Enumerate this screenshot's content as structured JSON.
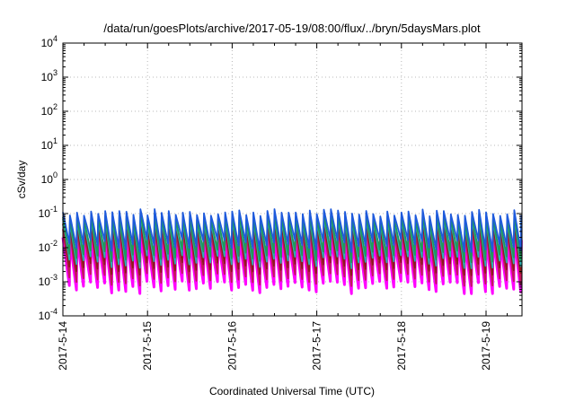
{
  "chart_data": {
    "type": "line",
    "title": "/data/run/goesPlots/archive/2017-05-19/08:00/flux/../bryn/5daysMars.plot",
    "xlabel": "Coordinated Universal Time (UTC)",
    "ylabel": "cSv/day",
    "yscale": "log",
    "ylim": [
      0.0001,
      10000
    ],
    "xlim": [
      "2017-05-14 00:00",
      "2017-05-19 10:00"
    ],
    "grid": true,
    "y_ticks": [
      {
        "base": "10",
        "exp": "-4"
      },
      {
        "base": "10",
        "exp": "-3"
      },
      {
        "base": "10",
        "exp": "-2"
      },
      {
        "base": "10",
        "exp": "-1"
      },
      {
        "base": "10",
        "exp": "0"
      },
      {
        "base": "10",
        "exp": "1"
      },
      {
        "base": "10",
        "exp": "2"
      },
      {
        "base": "10",
        "exp": "3"
      },
      {
        "base": "10",
        "exp": "4"
      }
    ],
    "x_ticks": [
      "2017-5-14",
      "2017-5-15",
      "2017-5-16",
      "2017-5-17",
      "2017-5-18",
      "2017-5-19"
    ],
    "pattern": {
      "period_hours": 2.0,
      "cycle_peak_range": [
        0.07,
        0.14
      ],
      "cycle_trough_range": [
        0.0005,
        0.02
      ]
    },
    "series": [
      {
        "color": "#ff00ff",
        "peak": 0.02,
        "trough": 0.0007
      },
      {
        "color": "#c2185b",
        "peak": 0.035,
        "trough": 0.0012
      },
      {
        "color": "#8b1a1a",
        "peak": 0.05,
        "trough": 0.0025
      },
      {
        "color": "#2ab0b0",
        "peak": 0.07,
        "trough": 0.004
      },
      {
        "color": "#1f9a5a",
        "peak": 0.08,
        "trough": 0.006
      },
      {
        "color": "#1e5adc",
        "peak": 0.11,
        "trough": 0.012
      }
    ]
  }
}
